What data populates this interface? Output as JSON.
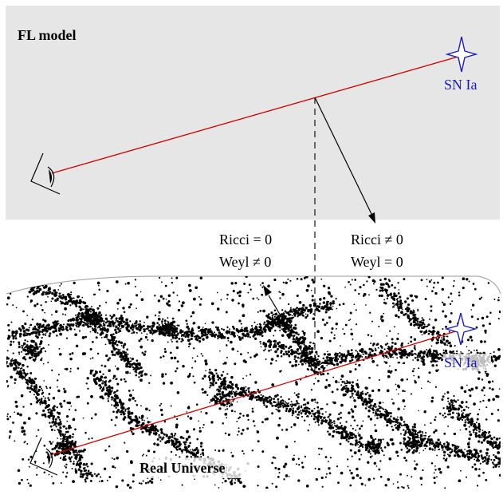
{
  "top_panel": {
    "title": "FL model",
    "supernova_label": "SN Ia"
  },
  "middle": {
    "left_ricci": "Ricci = 0",
    "left_weyl": "Weyl ≠ 0",
    "right_ricci": "Ricci ≠ 0",
    "right_weyl": "Weyl = 0"
  },
  "bottom_panel": {
    "title": "Real Universe",
    "supernova_label": "SN Ia"
  },
  "colors": {
    "panel_bg": "#e6e6e6",
    "light_ray": "#cc0000",
    "supernova": "#1a1ab4",
    "galaxy_points": "#000000"
  },
  "icons": {
    "observer": "eye-icon",
    "supernova": "four-point-star-icon"
  }
}
